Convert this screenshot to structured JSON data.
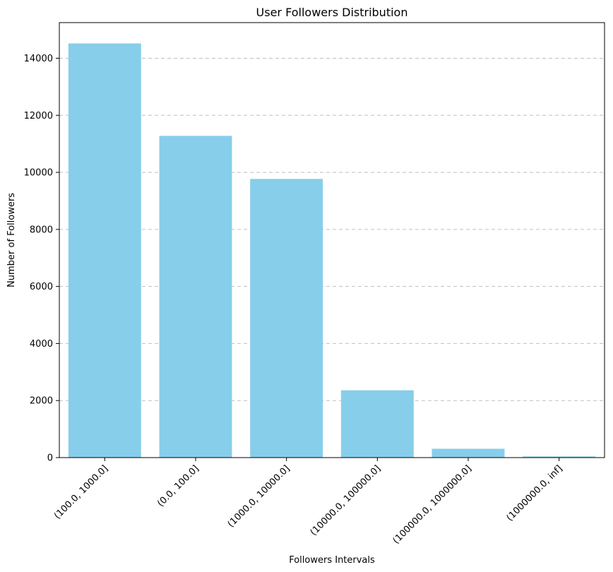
{
  "chart_data": {
    "type": "bar",
    "title": "User Followers Distribution",
    "xlabel": "Followers Intervals",
    "ylabel": "Number of Followers",
    "categories": [
      "(100.0, 1000.0]",
      "(0.0, 100.0]",
      "(1000.0, 10000.0]",
      "(10000.0, 100000.0]",
      "(100000.0, 1000000.0]",
      "(1000000.0, inf]"
    ],
    "values": [
      14520,
      11280,
      9770,
      2360,
      310,
      40
    ],
    "ylim": [
      0,
      15250
    ],
    "yticks": [
      0,
      2000,
      4000,
      6000,
      8000,
      10000,
      12000,
      14000
    ],
    "ytick_labels": [
      "0",
      "2000",
      "4000",
      "6000",
      "8000",
      "10000",
      "12000",
      "14000"
    ],
    "grid": "y-dashed",
    "bar_color": "#87ceeb"
  }
}
